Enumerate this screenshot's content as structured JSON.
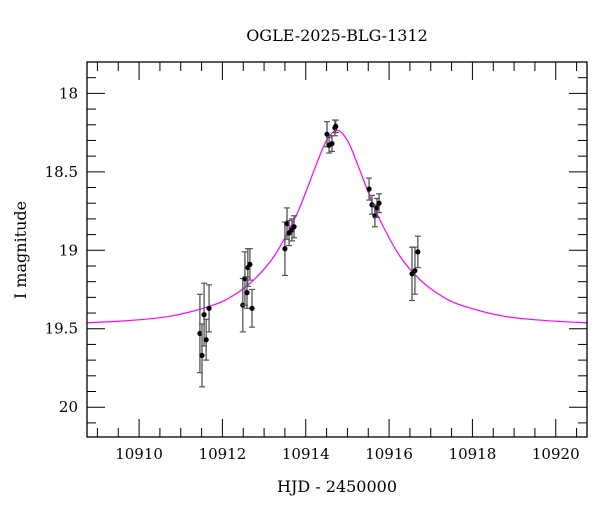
{
  "chart_data": {
    "type": "scatter",
    "title": "OGLE-2025-BLG-1312",
    "xlabel": "HJD - 2450000",
    "ylabel": "I magnitude",
    "xlim": [
      10908.75,
      10920.75
    ],
    "ylim": [
      20.19,
      17.8
    ],
    "y_inverted": true,
    "grid": false,
    "x_ticks": [
      10910,
      10912,
      10914,
      10916,
      10918,
      10920
    ],
    "x_tick_labels": [
      "10910",
      "10912",
      "10914",
      "10916",
      "10918",
      "10920"
    ],
    "y_ticks": [
      18,
      18.5,
      19,
      19.5,
      20
    ],
    "y_tick_labels": [
      "18",
      "18.5",
      "19",
      "19.5",
      "20"
    ],
    "colors": {
      "points": "#000000",
      "model": "#ff00ff",
      "errorbars": "#555555"
    },
    "points": [
      {
        "x": 10911.46,
        "y": 19.53,
        "err": 0.25
      },
      {
        "x": 10911.51,
        "y": 19.67,
        "err": 0.2
      },
      {
        "x": 10911.56,
        "y": 19.41,
        "err": 0.2
      },
      {
        "x": 10911.61,
        "y": 19.57,
        "err": 0.13
      },
      {
        "x": 10911.68,
        "y": 19.37,
        "err": 0.15
      },
      {
        "x": 10912.49,
        "y": 19.35,
        "err": 0.17
      },
      {
        "x": 10912.54,
        "y": 19.18,
        "err": 0.17
      },
      {
        "x": 10912.59,
        "y": 19.27,
        "err": 0.1
      },
      {
        "x": 10912.61,
        "y": 19.11,
        "err": 0.12
      },
      {
        "x": 10912.66,
        "y": 19.09,
        "err": 0.1
      },
      {
        "x": 10912.71,
        "y": 19.37,
        "err": 0.12
      },
      {
        "x": 10913.5,
        "y": 18.99,
        "err": 0.17
      },
      {
        "x": 10913.55,
        "y": 18.83,
        "err": 0.1
      },
      {
        "x": 10913.6,
        "y": 18.89,
        "err": 0.08
      },
      {
        "x": 10913.67,
        "y": 18.87,
        "err": 0.07
      },
      {
        "x": 10913.72,
        "y": 18.85,
        "err": 0.07
      },
      {
        "x": 10914.51,
        "y": 18.26,
        "err": 0.08
      },
      {
        "x": 10914.56,
        "y": 18.33,
        "err": 0.05
      },
      {
        "x": 10914.63,
        "y": 18.32,
        "err": 0.05
      },
      {
        "x": 10914.7,
        "y": 18.22,
        "err": 0.05
      },
      {
        "x": 10914.72,
        "y": 18.21,
        "err": 0.04
      },
      {
        "x": 10915.52,
        "y": 18.61,
        "err": 0.07
      },
      {
        "x": 10915.59,
        "y": 18.71,
        "err": 0.06
      },
      {
        "x": 10915.66,
        "y": 18.78,
        "err": 0.07
      },
      {
        "x": 10915.71,
        "y": 18.73,
        "err": 0.06
      },
      {
        "x": 10915.76,
        "y": 18.7,
        "err": 0.06
      },
      {
        "x": 10916.55,
        "y": 19.15,
        "err": 0.17
      },
      {
        "x": 10916.62,
        "y": 19.13,
        "err": 0.15
      },
      {
        "x": 10916.69,
        "y": 19.01,
        "err": 0.1
      }
    ],
    "model": {
      "x": [
        10908.75,
        10909.75,
        10910.75,
        10911.75,
        10912.25,
        10912.75,
        10913.25,
        10913.75,
        10914.0,
        10914.25,
        10914.5,
        10914.75,
        10915.0,
        10915.25,
        10915.5,
        10915.75,
        10916.25,
        10916.75,
        10917.25,
        10917.75,
        10918.75,
        10919.75,
        10920.75
      ],
      "y": [
        19.462,
        19.448,
        19.42,
        19.352,
        19.29,
        19.19,
        19.034,
        18.79,
        18.63,
        18.456,
        18.3,
        18.235,
        18.3,
        18.456,
        18.63,
        18.79,
        19.034,
        19.19,
        19.29,
        19.352,
        19.42,
        19.448,
        19.462
      ]
    }
  }
}
